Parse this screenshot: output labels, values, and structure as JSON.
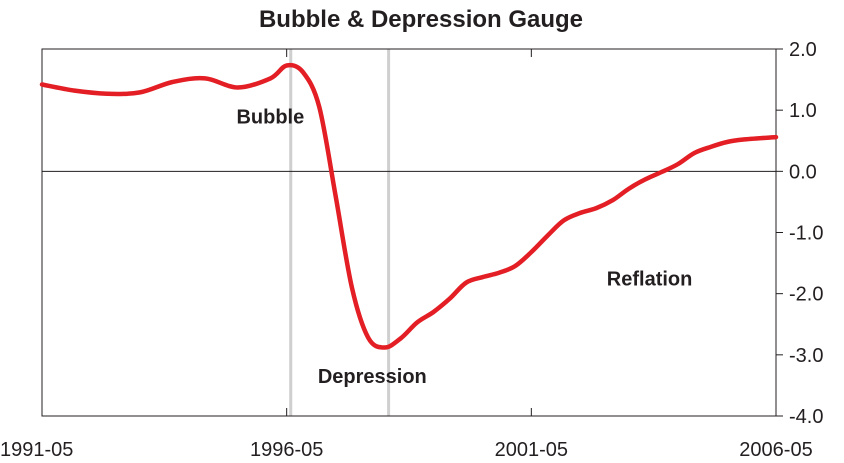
{
  "chart_data": {
    "type": "line",
    "title": "Bubble & Depression Gauge",
    "xlabel": "",
    "ylabel": "",
    "x_tick_labels": [
      "1991-05",
      "1996-05",
      "2001-05",
      "2006-05"
    ],
    "y_tick_labels": [
      "2.0",
      "1.0",
      "0.0",
      "-1.0",
      "-2.0",
      "-3.0",
      "-4.0"
    ],
    "ylim": [
      -4.0,
      2.0
    ],
    "xlim": [
      "1991-05",
      "2006-05"
    ],
    "grid": false,
    "legend": "none",
    "reference_lines": {
      "horizontal_at": 0.0,
      "vertical_at": [
        "1996-06",
        "1998-06"
      ],
      "vertical_color": "#cfcfcf"
    },
    "annotations": [
      {
        "text": "Bubble",
        "x": "1996-01",
        "y": 0.9
      },
      {
        "text": "Depression",
        "x": "1998-02",
        "y": -3.35
      },
      {
        "text": "Reflation",
        "x": "2003-10",
        "y": -1.75
      }
    ],
    "series": [
      {
        "color": "#e31e24",
        "x": [
          "1991-05",
          "1992-01",
          "1992-09",
          "1993-05",
          "1994-01",
          "1994-09",
          "1995-05",
          "1996-01",
          "1996-05",
          "1996-09",
          "1997-01",
          "1997-05",
          "1997-09",
          "1998-01",
          "1998-05",
          "1998-09",
          "1999-01",
          "1999-05",
          "1999-09",
          "2000-01",
          "2000-05",
          "2000-09",
          "2001-01",
          "2001-05",
          "2001-09",
          "2002-01",
          "2002-05",
          "2002-09",
          "2003-01",
          "2003-05",
          "2003-09",
          "2004-01",
          "2004-05",
          "2004-09",
          "2005-01",
          "2005-05",
          "2005-09",
          "2006-05"
        ],
        "values": [
          1.42,
          1.32,
          1.27,
          1.29,
          1.46,
          1.52,
          1.37,
          1.52,
          1.73,
          1.62,
          1.05,
          -0.4,
          -1.9,
          -2.72,
          -2.88,
          -2.73,
          -2.47,
          -2.3,
          -2.08,
          -1.82,
          -1.73,
          -1.66,
          -1.55,
          -1.32,
          -1.05,
          -0.8,
          -0.68,
          -0.6,
          -0.47,
          -0.28,
          -0.13,
          -0.01,
          0.12,
          0.3,
          0.4,
          0.48,
          0.52,
          0.56
        ]
      }
    ]
  }
}
